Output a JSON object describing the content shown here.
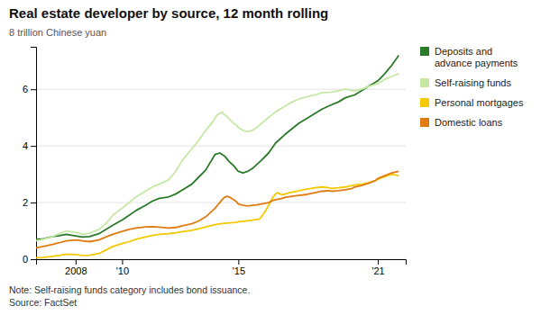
{
  "chart_data": {
    "type": "line",
    "title": "Real estate developer by source, 12 month rolling",
    "ylabel": "8 trillion Chinese yuan",
    "annotations": [
      "Note: Self-raising funds category includes bond issuance.",
      "Source: FactSet"
    ],
    "xlim": [
      2006.3,
      2022.2
    ],
    "xticks": [
      2008,
      {
        "value": 2010,
        "label": "'10"
      },
      {
        "value": 2015,
        "label": "'15"
      },
      {
        "value": 2021,
        "label": "'21"
      }
    ],
    "ylim": [
      0,
      7.5
    ],
    "yticks": [
      0,
      2,
      4,
      6
    ],
    "grid": true,
    "legend": "right",
    "series": [
      {
        "name": "Deposits and\nadvance payments",
        "color": "#2a7a2a",
        "x": [
          2006.3,
          2006.6,
          2007.0,
          2007.3,
          2007.6,
          2008.0,
          2008.3,
          2008.6,
          2009.0,
          2009.3,
          2009.6,
          2010.0,
          2010.3,
          2010.6,
          2011.0,
          2011.3,
          2011.6,
          2012.0,
          2012.3,
          2012.6,
          2013.0,
          2013.3,
          2013.6,
          2014.0,
          2014.2,
          2014.4,
          2014.6,
          2014.8,
          2015.0,
          2015.2,
          2015.4,
          2015.6,
          2015.8,
          2016.0,
          2016.3,
          2016.6,
          2017.0,
          2017.3,
          2017.6,
          2018.0,
          2018.3,
          2018.6,
          2019.0,
          2019.3,
          2019.6,
          2020.0,
          2020.3,
          2020.6,
          2021.0,
          2021.3,
          2021.6,
          2021.9
        ],
        "values": [
          0.7,
          0.72,
          0.8,
          0.83,
          0.88,
          0.82,
          0.78,
          0.8,
          0.9,
          1.05,
          1.2,
          1.38,
          1.55,
          1.72,
          1.9,
          2.05,
          2.15,
          2.2,
          2.3,
          2.45,
          2.65,
          2.9,
          3.15,
          3.7,
          3.75,
          3.65,
          3.45,
          3.3,
          3.1,
          3.05,
          3.1,
          3.2,
          3.35,
          3.5,
          3.75,
          4.1,
          4.4,
          4.6,
          4.8,
          5.0,
          5.15,
          5.3,
          5.45,
          5.55,
          5.7,
          5.8,
          5.95,
          6.1,
          6.3,
          6.55,
          6.85,
          7.2
        ]
      },
      {
        "name": "Self-raising funds",
        "color": "#c5e8a5",
        "x": [
          2006.3,
          2006.6,
          2007.0,
          2007.3,
          2007.6,
          2008.0,
          2008.3,
          2008.6,
          2009.0,
          2009.3,
          2009.6,
          2010.0,
          2010.3,
          2010.6,
          2011.0,
          2011.3,
          2011.6,
          2012.0,
          2012.3,
          2012.6,
          2013.0,
          2013.3,
          2013.6,
          2013.9,
          2014.0,
          2014.1,
          2014.2,
          2014.3,
          2014.4,
          2014.5,
          2014.6,
          2014.7,
          2014.8,
          2014.9,
          2015.0,
          2015.2,
          2015.4,
          2015.6,
          2015.8,
          2016.0,
          2016.3,
          2016.6,
          2017.0,
          2017.3,
          2017.6,
          2018.0,
          2018.3,
          2018.6,
          2019.0,
          2019.3,
          2019.6,
          2020.0,
          2020.3,
          2020.6,
          2021.0,
          2021.3,
          2021.6,
          2021.9
        ],
        "values": [
          0.65,
          0.7,
          0.8,
          0.9,
          1.0,
          0.95,
          0.88,
          0.92,
          1.05,
          1.25,
          1.55,
          1.8,
          2.0,
          2.2,
          2.4,
          2.55,
          2.65,
          2.8,
          3.1,
          3.5,
          3.9,
          4.2,
          4.55,
          4.85,
          5.0,
          5.1,
          5.15,
          5.2,
          5.1,
          5.05,
          4.95,
          4.88,
          4.8,
          4.75,
          4.65,
          4.55,
          4.5,
          4.55,
          4.65,
          4.8,
          5.0,
          5.2,
          5.4,
          5.55,
          5.65,
          5.75,
          5.8,
          5.88,
          5.9,
          5.95,
          6.0,
          5.95,
          6.0,
          6.1,
          6.2,
          6.35,
          6.45,
          6.55
        ]
      },
      {
        "name": "Personal mortgages",
        "color": "#f5c800",
        "x": [
          2006.3,
          2006.6,
          2007.0,
          2007.3,
          2007.6,
          2008.0,
          2008.3,
          2008.6,
          2009.0,
          2009.3,
          2009.6,
          2010.0,
          2010.3,
          2010.6,
          2011.0,
          2011.3,
          2011.6,
          2012.0,
          2012.3,
          2012.6,
          2013.0,
          2013.3,
          2013.6,
          2014.0,
          2014.3,
          2014.6,
          2014.9,
          2015.0,
          2015.3,
          2015.6,
          2015.9,
          2016.0,
          2016.2,
          2016.4,
          2016.5,
          2016.6,
          2016.7,
          2016.8,
          2016.9,
          2017.0,
          2017.2,
          2017.4,
          2017.6,
          2017.8,
          2018.0,
          2018.3,
          2018.6,
          2018.9,
          2019.0,
          2019.3,
          2019.6,
          2019.9,
          2020.0,
          2020.3,
          2020.6,
          2020.9,
          2021.0,
          2021.3,
          2021.6,
          2021.9
        ],
        "values": [
          0.05,
          0.06,
          0.1,
          0.13,
          0.18,
          0.16,
          0.13,
          0.14,
          0.2,
          0.32,
          0.45,
          0.55,
          0.62,
          0.7,
          0.78,
          0.84,
          0.88,
          0.9,
          0.93,
          0.97,
          1.02,
          1.08,
          1.14,
          1.22,
          1.26,
          1.28,
          1.3,
          1.32,
          1.35,
          1.38,
          1.42,
          1.5,
          1.75,
          2.05,
          2.2,
          2.3,
          2.35,
          2.3,
          2.28,
          2.3,
          2.35,
          2.38,
          2.42,
          2.45,
          2.48,
          2.52,
          2.55,
          2.52,
          2.5,
          2.52,
          2.55,
          2.6,
          2.62,
          2.65,
          2.7,
          2.78,
          2.82,
          2.92,
          3.0,
          2.95
        ]
      },
      {
        "name": "Domestic loans",
        "color": "#e07b10",
        "x": [
          2006.3,
          2006.6,
          2007.0,
          2007.3,
          2007.6,
          2008.0,
          2008.3,
          2008.6,
          2009.0,
          2009.3,
          2009.6,
          2010.0,
          2010.3,
          2010.6,
          2011.0,
          2011.3,
          2011.6,
          2012.0,
          2012.3,
          2012.6,
          2013.0,
          2013.3,
          2013.6,
          2014.0,
          2014.1,
          2014.2,
          2014.3,
          2014.4,
          2014.5,
          2014.6,
          2014.7,
          2014.8,
          2014.9,
          2015.0,
          2015.2,
          2015.4,
          2015.6,
          2015.8,
          2016.0,
          2016.3,
          2016.5,
          2016.7,
          2016.9,
          2017.0,
          2017.3,
          2017.6,
          2017.9,
          2018.0,
          2018.3,
          2018.6,
          2018.9,
          2019.0,
          2019.3,
          2019.6,
          2019.9,
          2020.0,
          2020.3,
          2020.6,
          2020.9,
          2021.0,
          2021.3,
          2021.6,
          2021.9
        ],
        "values": [
          0.4,
          0.45,
          0.52,
          0.58,
          0.65,
          0.68,
          0.65,
          0.62,
          0.68,
          0.78,
          0.88,
          0.98,
          1.05,
          1.1,
          1.14,
          1.15,
          1.13,
          1.1,
          1.12,
          1.18,
          1.25,
          1.35,
          1.5,
          1.8,
          1.9,
          2.0,
          2.1,
          2.18,
          2.22,
          2.2,
          2.15,
          2.1,
          2.05,
          1.95,
          1.9,
          1.88,
          1.9,
          1.92,
          1.95,
          2.0,
          2.08,
          2.12,
          2.15,
          2.18,
          2.22,
          2.25,
          2.28,
          2.3,
          2.35,
          2.4,
          2.42,
          2.4,
          2.42,
          2.45,
          2.5,
          2.55,
          2.6,
          2.68,
          2.78,
          2.85,
          2.95,
          3.05,
          3.1
        ]
      }
    ]
  }
}
